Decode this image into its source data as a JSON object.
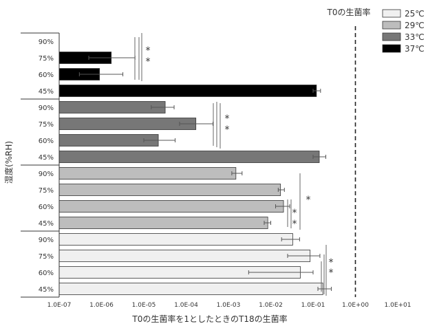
{
  "chart_data": {
    "type": "bar",
    "orientation": "horizontal",
    "xscale": "log",
    "xlabel": "T0の生菌率を1としたときのT18の生菌率",
    "ylabel": "湿度(%RH)",
    "xlim": [
      1e-07,
      10
    ],
    "x_tick_labels": [
      "1.0E-07",
      "1.0E-06",
      "1.0E-05",
      "1.0E-04",
      "1.0E-03",
      "1.0E-02",
      "1.0E-01",
      "1.0E+00",
      "1.0E+01"
    ],
    "x_tick_values": [
      1e-07,
      1e-06,
      1e-05,
      0.0001,
      0.001,
      0.01,
      0.1,
      1,
      10
    ],
    "reference_line": {
      "x": 1,
      "label": "T0の生菌率"
    },
    "legend_position": "top-right",
    "series": [
      {
        "name": "37℃",
        "color": "#000000",
        "categories": [
          "90%",
          "75%",
          "60%",
          "45%"
        ],
        "values": [
          null,
          1.7e-06,
          9e-07,
          0.12
        ],
        "err_low": [
          null,
          1.2e-06,
          6e-07,
          0.02
        ],
        "err_high": [
          null,
          4.5e-06,
          2.3e-06,
          0.03
        ]
      },
      {
        "name": "33℃",
        "color": "#777777",
        "categories": [
          "90%",
          "75%",
          "60%",
          "45%"
        ],
        "values": [
          3.2e-05,
          0.00017,
          2.2e-05,
          0.14
        ],
        "err_low": [
          1.7e-05,
          0.0001,
          1.2e-05,
          0.04
        ],
        "err_high": [
          2e-05,
          0.00026,
          3.3e-05,
          0.06
        ]
      },
      {
        "name": "29℃",
        "color": "#bdbdbd",
        "categories": [
          "90%",
          "75%",
          "60%",
          "45%"
        ],
        "values": [
          0.0015,
          0.017,
          0.02,
          0.0085
        ],
        "err_low": [
          0.0003,
          0.002,
          0.007,
          0.0015
        ],
        "err_high": [
          0.0006,
          0.004,
          0.008,
          0.0015
        ]
      },
      {
        "name": "25℃",
        "color": "#f0f0f0",
        "categories": [
          "90%",
          "75%",
          "60%",
          "45%"
        ],
        "values": [
          0.033,
          0.085,
          0.05,
          0.17
        ],
        "err_low": [
          0.015,
          0.06,
          0.047,
          0.04
        ],
        "err_high": [
          0.015,
          0.06,
          0.05,
          0.1
        ]
      }
    ],
    "significance_marks": [
      {
        "series": "37℃",
        "marks": [
          "*",
          "*"
        ]
      },
      {
        "series": "33℃",
        "marks": [
          "*",
          "*"
        ]
      },
      {
        "series": "29℃",
        "marks": [
          "*",
          "*",
          "*"
        ]
      },
      {
        "series": "25℃",
        "marks": [
          "*",
          "*"
        ]
      }
    ],
    "legend": [
      "25℃",
      "29℃",
      "33℃",
      "37℃"
    ]
  }
}
